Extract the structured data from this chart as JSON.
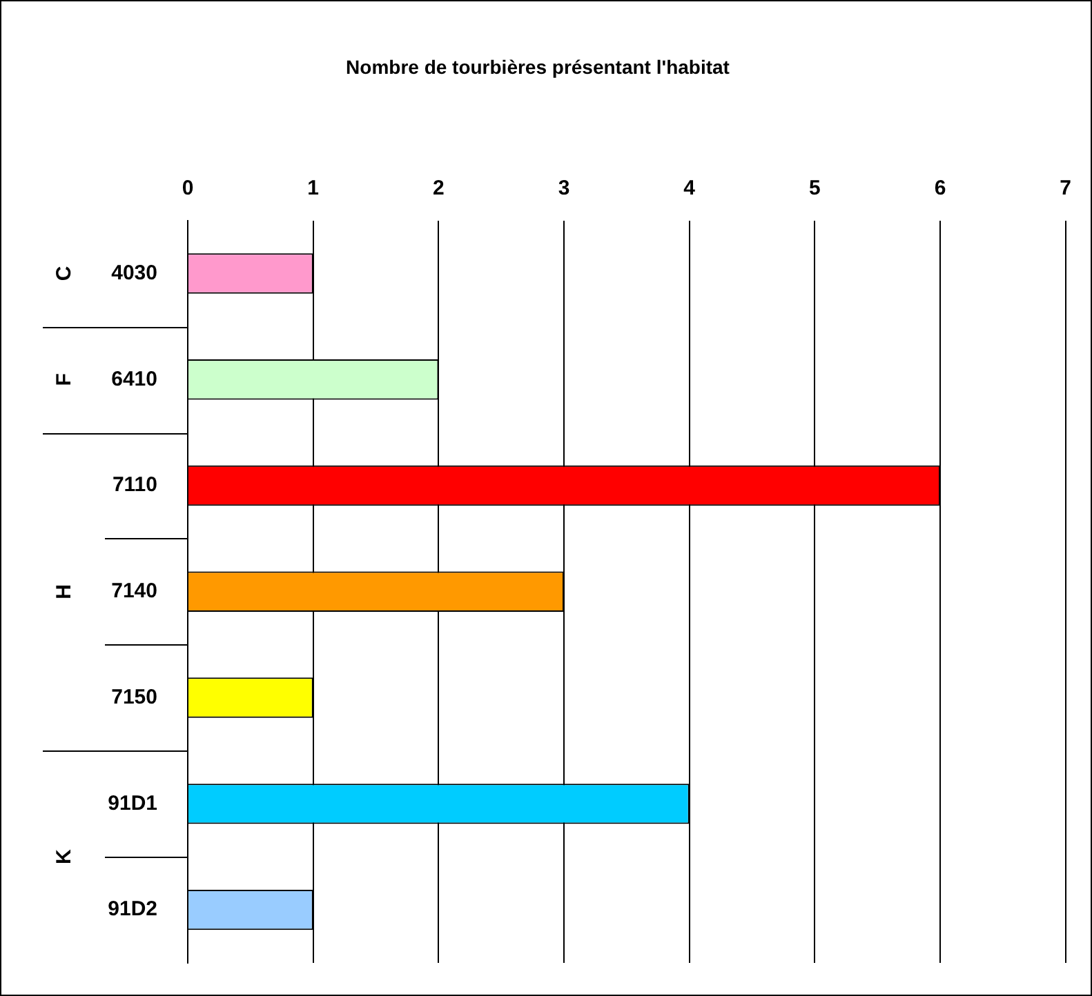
{
  "chart_data": {
    "type": "bar",
    "orientation": "horizontal",
    "title": "Nombre de tourbières présentant l'habitat",
    "categories": [
      "4030",
      "6410",
      "7110",
      "7140",
      "7150",
      "91D1",
      "91D2"
    ],
    "values": [
      1,
      2,
      6,
      3,
      1,
      4,
      1
    ],
    "colors": [
      "#ff99cc",
      "#ccffcc",
      "#ff0000",
      "#ff9900",
      "#ffff00",
      "#00ccff",
      "#99ccff"
    ],
    "xlim": [
      0,
      7
    ],
    "xticks": [
      0,
      1,
      2,
      3,
      4,
      5,
      6,
      7
    ],
    "grid": "x",
    "legend": false,
    "annotations": [
      "C",
      "F",
      "H",
      "K"
    ]
  }
}
